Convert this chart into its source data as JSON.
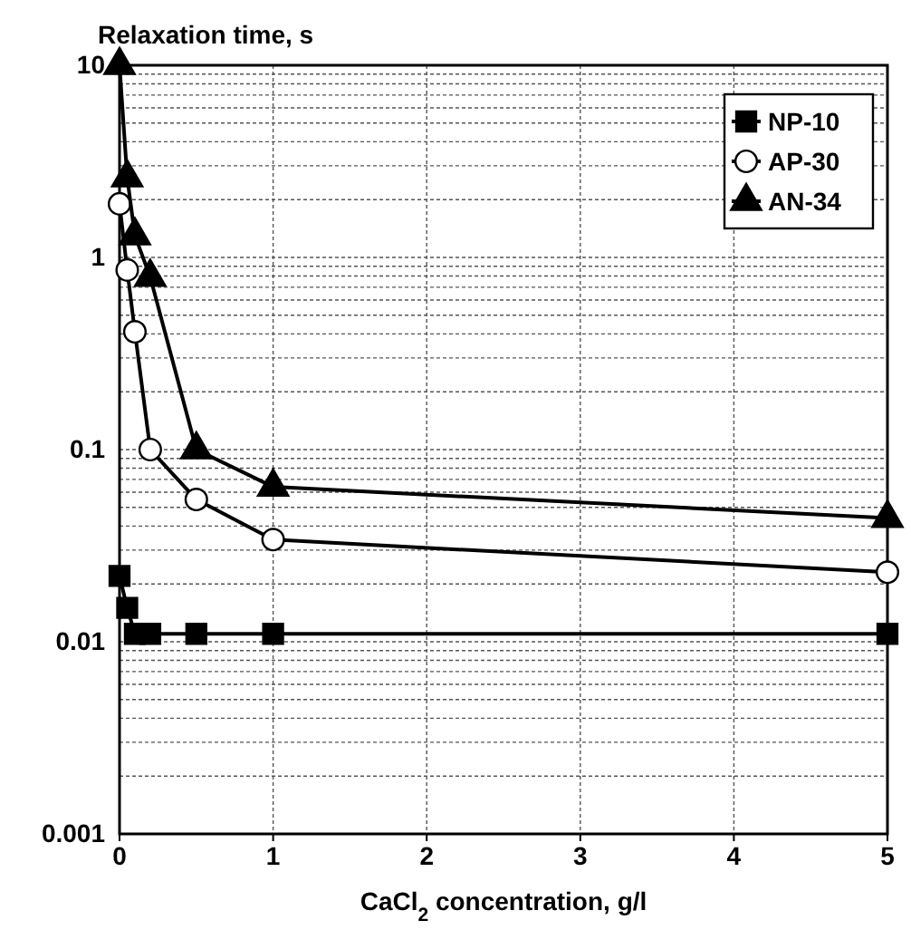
{
  "chart_data": {
    "type": "line",
    "ylabel": "Relaxation time, s",
    "xlabel": "CaCl$_{2}$  concentration, g/l",
    "log": "y",
    "xlim": [
      0,
      5
    ],
    "xticks": [
      0,
      1,
      2,
      3,
      4,
      5
    ],
    "ylim": [
      0.001,
      10
    ],
    "yticks": [
      10,
      1,
      0.1,
      0.01,
      0.001
    ],
    "grid": true,
    "legend": "top right",
    "x": [
      0,
      0.05,
      0.1,
      0.2,
      0.5,
      1,
      5
    ],
    "series": [
      {
        "name": "NP-10",
        "color": "#000000",
        "marker": "square",
        "values": [
          0.022,
          0.015,
          0.011,
          0.011,
          0.011,
          0.011,
          0.011
        ]
      },
      {
        "name": "AP-30",
        "color": "#000000",
        "marker": "circle",
        "values": [
          1.9,
          0.86,
          0.41,
          0.1,
          0.055,
          0.034,
          0.023
        ]
      },
      {
        "name": "AN-34",
        "color": "#000000",
        "marker": "triangle",
        "values": [
          10,
          2.6,
          1.3,
          0.79,
          0.1,
          0.064,
          0.044
        ]
      }
    ]
  }
}
